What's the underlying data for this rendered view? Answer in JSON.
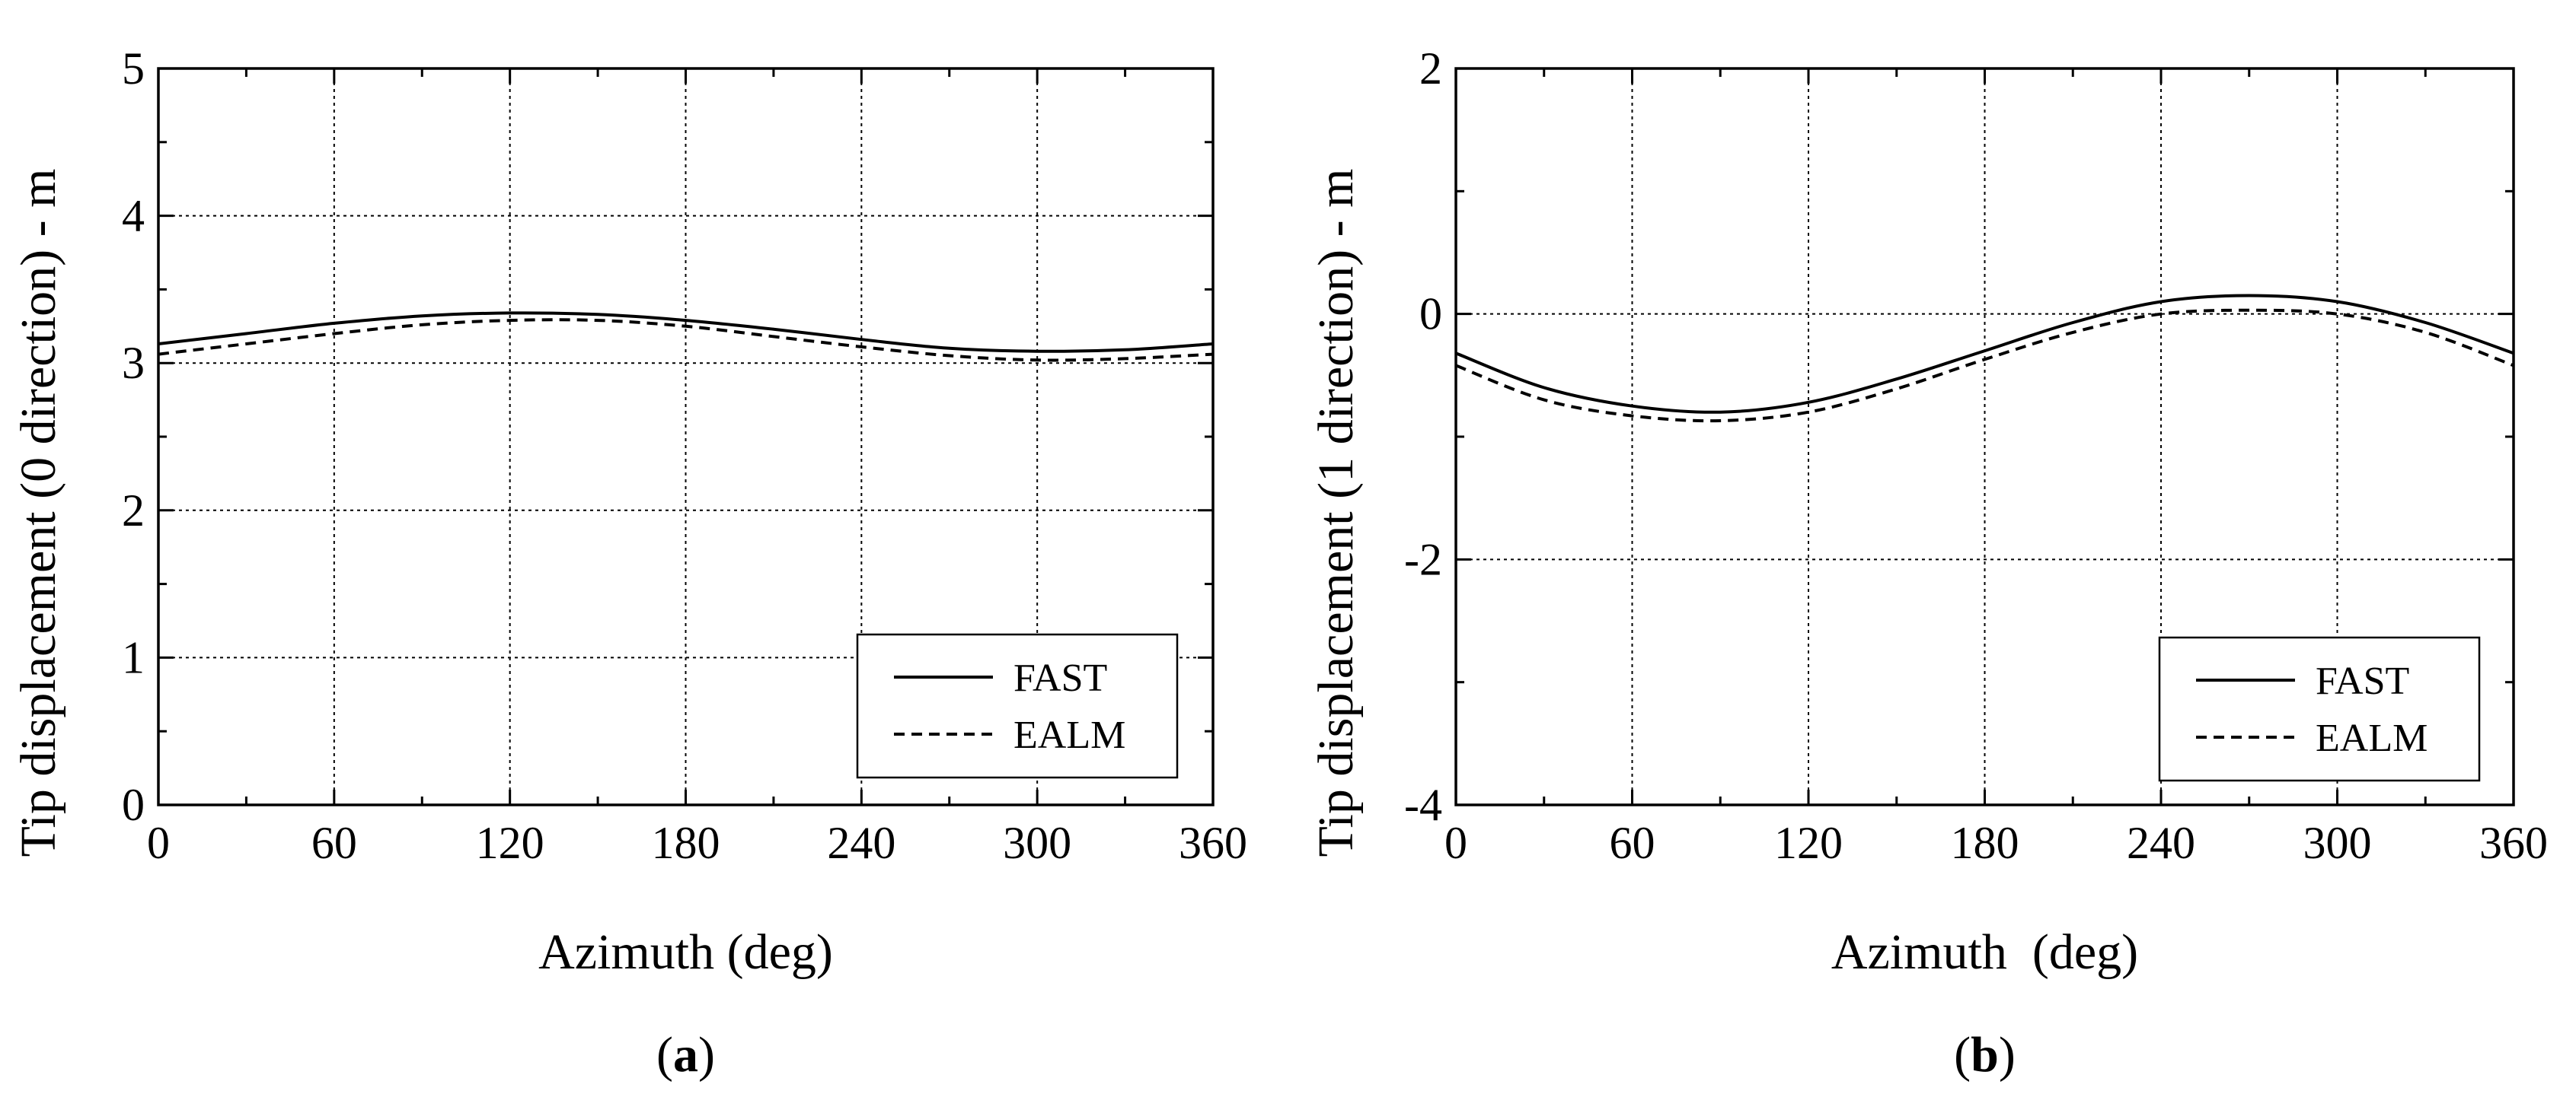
{
  "chart_data": [
    {
      "type": "line",
      "caption_letter": "a",
      "xlabel": "Azimuth (deg)",
      "ylabel": "Tip displacement (0 direction) - m",
      "xlim": [
        0,
        360
      ],
      "ylim": [
        0,
        5
      ],
      "xticks": [
        0,
        60,
        120,
        180,
        240,
        300,
        360
      ],
      "yticks": [
        0,
        1,
        2,
        3,
        4,
        5
      ],
      "grid": true,
      "legend_position": "bottom-right",
      "x": [
        0,
        30,
        60,
        90,
        120,
        150,
        180,
        210,
        240,
        270,
        300,
        330,
        360
      ],
      "series": [
        {
          "name": "FAST",
          "style": "solid",
          "values": [
            3.13,
            3.2,
            3.27,
            3.32,
            3.34,
            3.33,
            3.29,
            3.23,
            3.16,
            3.1,
            3.08,
            3.09,
            3.13
          ]
        },
        {
          "name": "EALM",
          "style": "dashed",
          "values": [
            3.06,
            3.13,
            3.2,
            3.26,
            3.29,
            3.29,
            3.25,
            3.18,
            3.11,
            3.05,
            3.02,
            3.03,
            3.06
          ]
        }
      ]
    },
    {
      "type": "line",
      "caption_letter": "b",
      "xlabel": "Azimuth  (deg)",
      "ylabel": "Tip displacement (1 direction) - m",
      "xlim": [
        0,
        360
      ],
      "ylim": [
        -4,
        2
      ],
      "xticks": [
        0,
        60,
        120,
        180,
        240,
        300,
        360
      ],
      "yticks": [
        -4,
        -2,
        0,
        2
      ],
      "grid": true,
      "legend_position": "bottom-right",
      "x": [
        0,
        30,
        60,
        90,
        120,
        150,
        180,
        210,
        240,
        270,
        300,
        330,
        360
      ],
      "series": [
        {
          "name": "FAST",
          "style": "solid",
          "values": [
            -0.32,
            -0.6,
            -0.75,
            -0.8,
            -0.72,
            -0.53,
            -0.3,
            -0.07,
            0.1,
            0.15,
            0.1,
            -0.07,
            -0.32
          ]
        },
        {
          "name": "EALM",
          "style": "dashed",
          "values": [
            -0.42,
            -0.7,
            -0.83,
            -0.87,
            -0.8,
            -0.61,
            -0.37,
            -0.15,
            0.0,
            0.03,
            0.0,
            -0.15,
            -0.42
          ]
        }
      ]
    }
  ]
}
